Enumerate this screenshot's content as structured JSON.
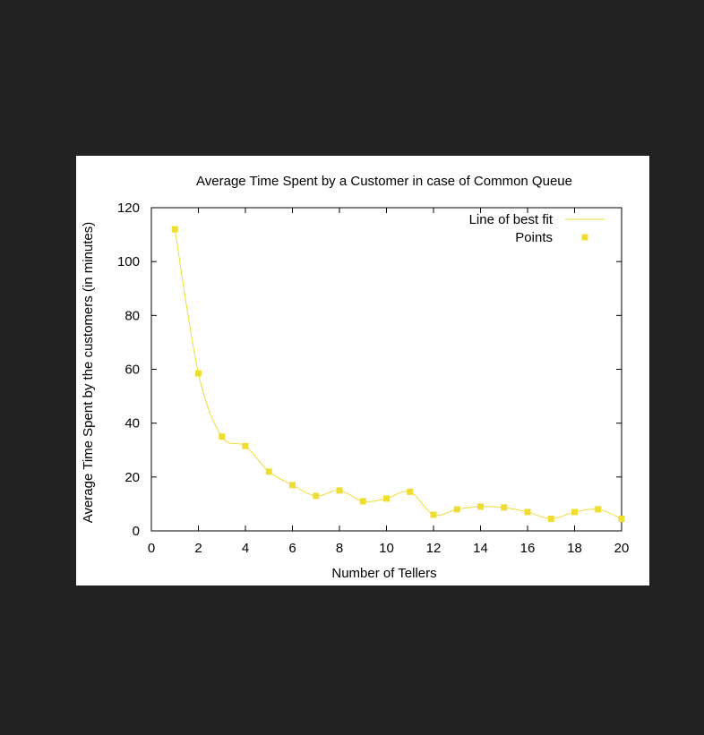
{
  "colors": {
    "page_background": "#222222",
    "card_background": "#ffffff",
    "series": "#eedd33",
    "axis": "#000000"
  },
  "chart_data": {
    "type": "line",
    "title": "Average Time Spent by a Customer in case of Common Queue",
    "xlabel": "Number of Tellers",
    "ylabel": "Average Time Spent by the customers (in minutes)",
    "xlim": [
      0,
      20
    ],
    "ylim": [
      0,
      120
    ],
    "xticks": [
      0,
      2,
      4,
      6,
      8,
      10,
      12,
      14,
      16,
      18,
      20
    ],
    "yticks": [
      0,
      20,
      40,
      60,
      80,
      100,
      120
    ],
    "grid": false,
    "legend_position": "top-right",
    "legend": [
      {
        "label": "Line of best fit",
        "kind": "line"
      },
      {
        "label": "Points",
        "kind": "marker"
      }
    ],
    "x": [
      1,
      2,
      3,
      4,
      5,
      6,
      7,
      8,
      9,
      10,
      11,
      12,
      13,
      14,
      15,
      16,
      17,
      18,
      19,
      20
    ],
    "series": [
      {
        "name": "Points",
        "values": [
          112,
          58.5,
          35,
          31.5,
          22,
          17,
          13,
          15,
          11,
          12,
          14.5,
          6,
          8,
          9,
          8.7,
          7,
          4.5,
          7,
          8,
          4.5
        ]
      }
    ]
  }
}
